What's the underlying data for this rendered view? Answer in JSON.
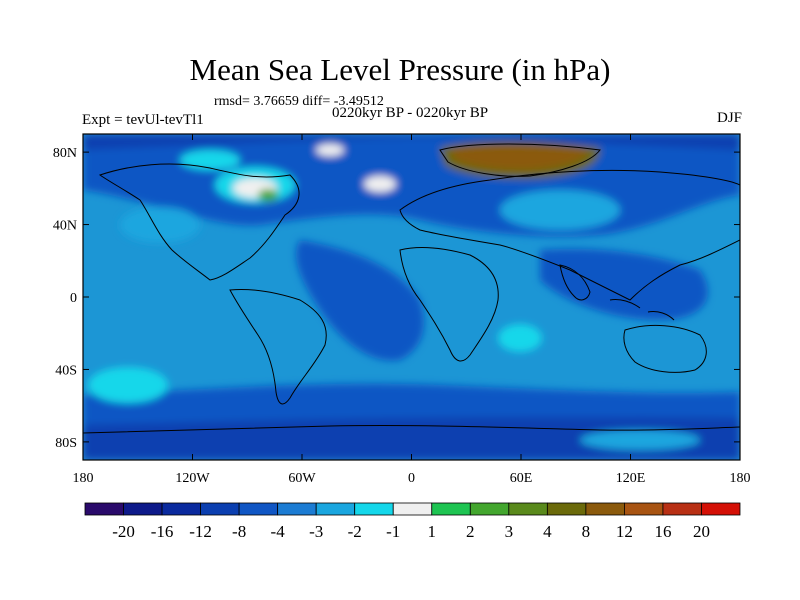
{
  "title": "Mean Sea Level Pressure (in hPa)",
  "stats": "rmsd= 3.76659 diff= -3.49512",
  "subtitle": "0220kyr BP - 0220kyr BP",
  "left_label": "Expt = tevUl-tevTl1",
  "right_label": "DJF",
  "map": {
    "type": "filled-contour-map",
    "projection": "cylindrical-equidistant",
    "lon_range": [
      -180,
      180
    ],
    "lat_range": [
      -90,
      90
    ],
    "lat_ticks": [
      "80N",
      "40N",
      "0",
      "40S",
      "80S"
    ],
    "lat_tick_values": [
      80,
      40,
      0,
      -40,
      -80
    ],
    "lon_ticks": [
      "180",
      "120W",
      "60W",
      "0",
      "60E",
      "120E",
      "180"
    ],
    "lon_tick_values": [
      -180,
      -120,
      -60,
      0,
      60,
      120,
      180
    ],
    "background_color": "#1c96d5"
  },
  "colorbar": {
    "colors": [
      "#2a0a6b",
      "#0e1a8a",
      "#0a2a9e",
      "#0b3fb0",
      "#1056c4",
      "#1c7cd3",
      "#1aa6df",
      "#15d7ea",
      "#f0f0f0",
      "#1ec452",
      "#43a62e",
      "#5a8a1c",
      "#6b6a0a",
      "#8b5a0c",
      "#a85412",
      "#b83014",
      "#d41006"
    ],
    "labels": [
      "-20",
      "-16",
      "-12",
      "-8",
      "-4",
      "-3",
      "-2",
      "-1",
      "1",
      "2",
      "3",
      "4",
      "8",
      "12",
      "16",
      "20"
    ]
  }
}
